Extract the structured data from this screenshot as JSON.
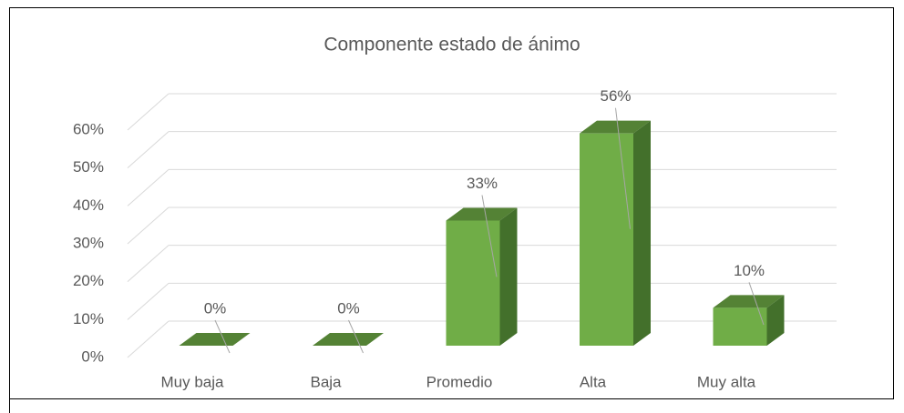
{
  "chart_data": {
    "type": "bar3d",
    "title": "Componente estado de ánimo",
    "categories": [
      "Muy baja",
      "Baja",
      "Promedio",
      "Alta",
      "Muy alta"
    ],
    "values": [
      0,
      0,
      33,
      56,
      10
    ],
    "value_labels": [
      "0%",
      "0%",
      "33%",
      "56%",
      "10%"
    ],
    "color": "#70ad47",
    "ylim": [
      0,
      60
    ],
    "yticks": [
      {
        "value": 0,
        "label": "0%"
      },
      {
        "value": 10,
        "label": "10%"
      },
      {
        "value": 20,
        "label": "20%"
      },
      {
        "value": 30,
        "label": "30%"
      },
      {
        "value": 40,
        "label": "40%"
      },
      {
        "value": 50,
        "label": "50%"
      },
      {
        "value": 60,
        "label": "60%"
      }
    ],
    "grid": true
  }
}
